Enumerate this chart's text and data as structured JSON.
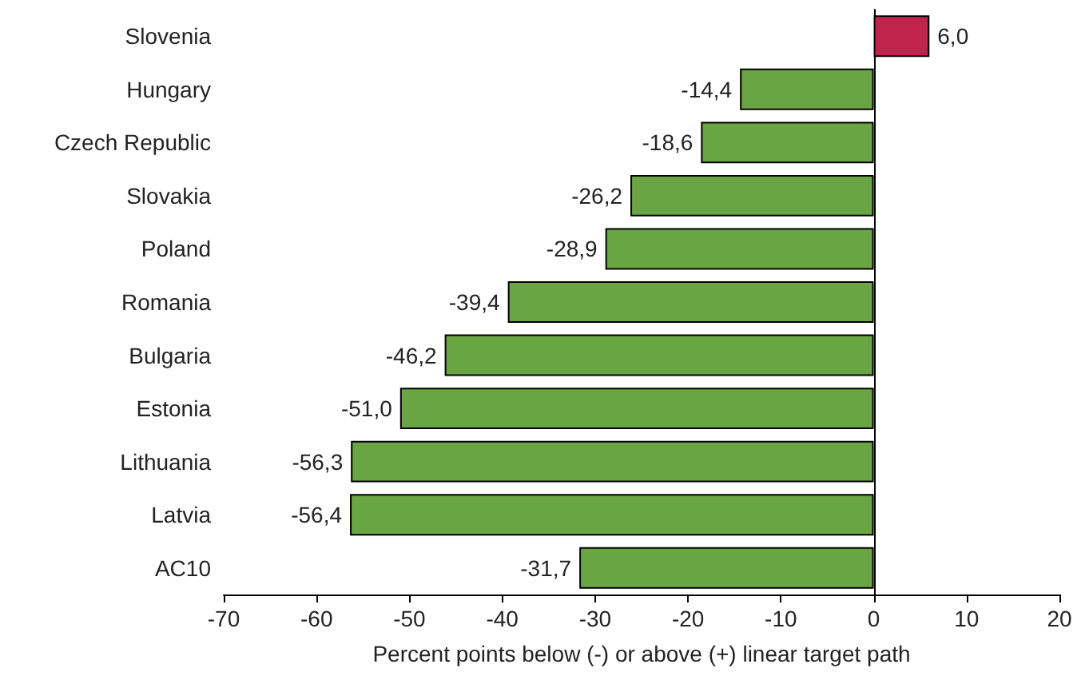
{
  "chart_data": {
    "type": "bar",
    "orientation": "horizontal",
    "xlabel": "Percent points below (-) or above (+) linear target path",
    "categories": [
      "Slovenia",
      "Hungary",
      "Czech Republic",
      "Slovakia",
      "Poland",
      "Romania",
      "Bulgaria",
      "Estonia",
      "Lithuania",
      "Latvia",
      "AC10"
    ],
    "values": [
      6.0,
      -14.4,
      -18.6,
      -26.2,
      -28.9,
      -39.4,
      -46.2,
      -51.0,
      -56.3,
      -56.4,
      -31.7
    ],
    "value_labels": [
      "6,0",
      "-14,4",
      "-18,6",
      "-26,2",
      "-28,9",
      "-39,4",
      "-46,2",
      "-51,0",
      "-56,3",
      "-56,4",
      "-31,7"
    ],
    "colors": [
      "#c0234b",
      "#69a542",
      "#69a542",
      "#69a542",
      "#69a542",
      "#69a542",
      "#69a542",
      "#69a542",
      "#69a542",
      "#69a542",
      "#69a542"
    ],
    "xlim": [
      -70,
      20
    ],
    "xticks": [
      -70,
      -60,
      -50,
      -40,
      -30,
      -20,
      -10,
      0,
      10,
      20
    ]
  }
}
